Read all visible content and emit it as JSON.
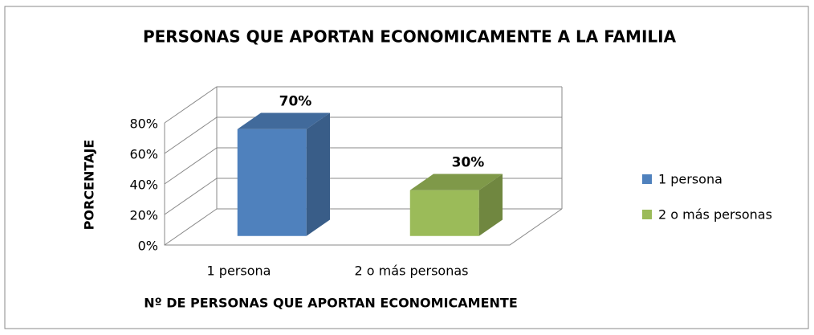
{
  "chart_data": {
    "type": "bar3d",
    "title": "PERSONAS QUE APORTAN ECONOMICAMENTE A LA FAMILIA",
    "x_label": "Nº DE PERSONAS QUE APORTAN ECONOMICAMENTE",
    "y_label": "PORCENTAJE",
    "categories": [
      "1 persona",
      "2 o más personas"
    ],
    "values": [
      70,
      30
    ],
    "value_labels": [
      "70%",
      "30%"
    ],
    "colors": [
      "#4f81bd",
      "#9bbb59"
    ],
    "ylim": [
      0,
      80
    ],
    "yticks": [
      {
        "value": 0,
        "label": "0%"
      },
      {
        "value": 20,
        "label": "20%"
      },
      {
        "value": 40,
        "label": "40%"
      },
      {
        "value": 60,
        "label": "60%"
      },
      {
        "value": 80,
        "label": "80%"
      }
    ],
    "grid": true,
    "legend": "right"
  }
}
